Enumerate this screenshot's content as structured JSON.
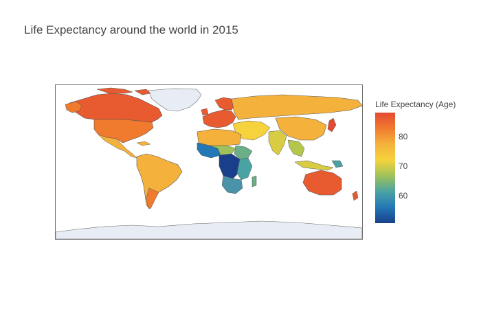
{
  "title": "Life Expectancy around the world in 2015",
  "colorbar": {
    "title": "Life Expectancy (Age)",
    "ticks": [
      "80",
      "70",
      "60"
    ],
    "colors": [
      "#e34a33",
      "#f07a2e",
      "#f4b23c",
      "#f6d33c",
      "#9fc25a",
      "#4aa3a3",
      "#2377b6",
      "#1a3f8a"
    ]
  },
  "chart_data": {
    "type": "choropleth",
    "title": "Life Expectancy around the world in 2015",
    "colorbar_title": "Life Expectancy (Age)",
    "colorbar_ticks": [
      80,
      70,
      60
    ],
    "range_approx": [
      51,
      88
    ],
    "projection": "equirectangular",
    "regions": [
      {
        "region": "Canada",
        "value": 82
      },
      {
        "region": "United States",
        "value": 79
      },
      {
        "region": "Mexico",
        "value": 77
      },
      {
        "region": "Brazil",
        "value": 75
      },
      {
        "region": "Argentina",
        "value": 76
      },
      {
        "region": "Russia",
        "value": 71
      },
      {
        "region": "China",
        "value": 76
      },
      {
        "region": "India",
        "value": 68
      },
      {
        "region": "Australia",
        "value": 83
      },
      {
        "region": "Central Africa",
        "value": 55
      },
      {
        "region": "Southern Africa",
        "value": 62
      }
    ]
  }
}
